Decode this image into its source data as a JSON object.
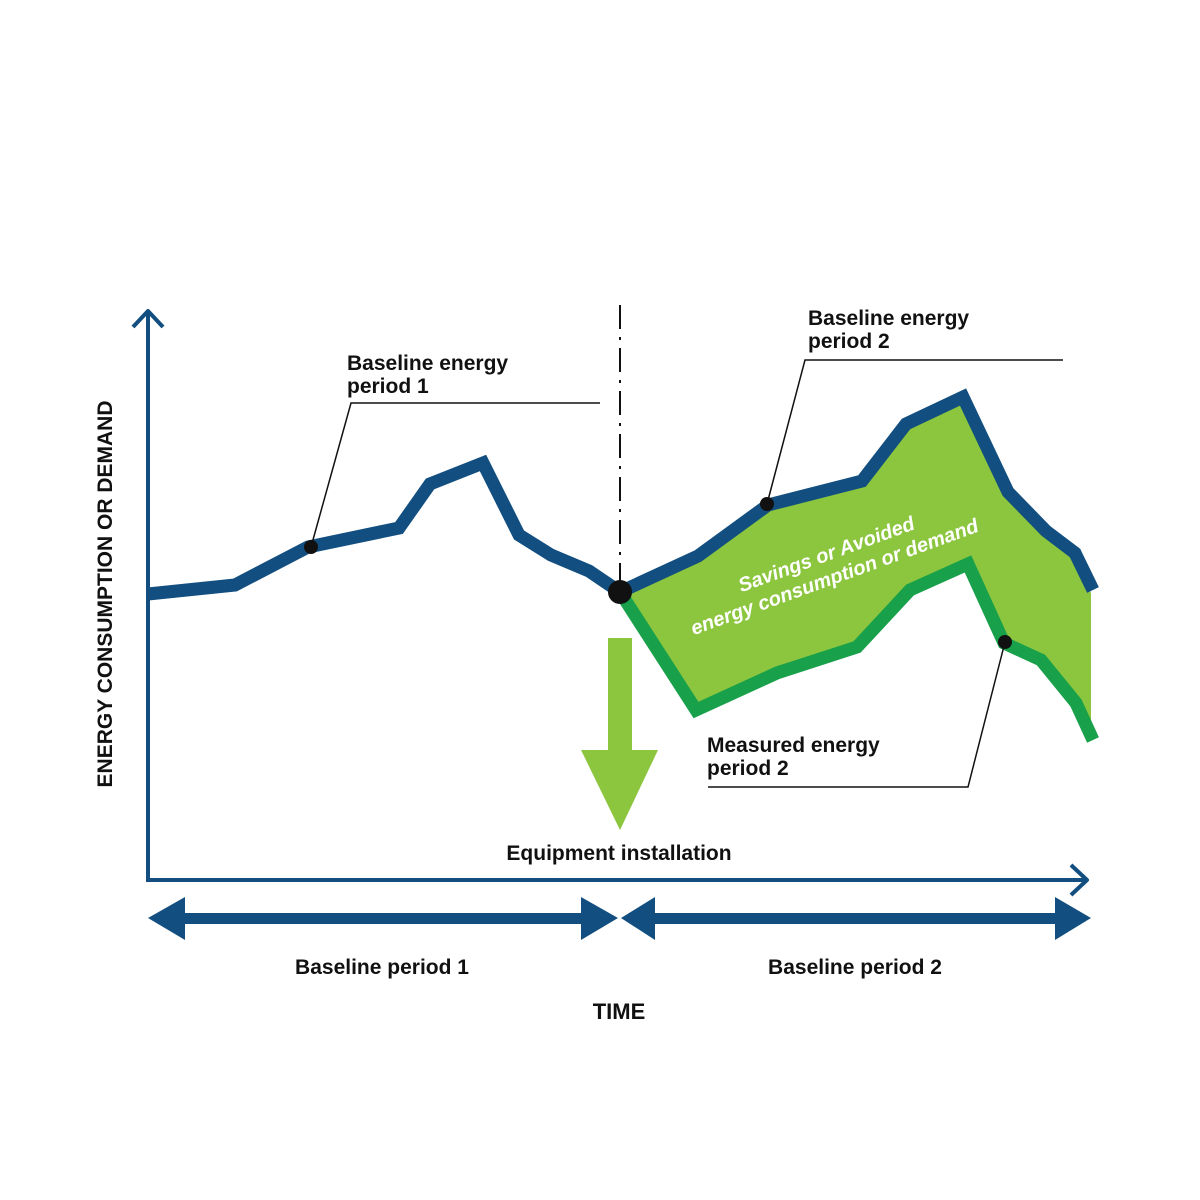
{
  "labels": {
    "y_axis": "ENERGY CONSUMPTION OR DEMAND",
    "x_axis": "TIME",
    "baseline_energy_1_line1": "Baseline energy",
    "baseline_energy_1_line2": "period 1",
    "baseline_energy_2_line1": "Baseline energy",
    "baseline_energy_2_line2": "period 2",
    "measured_energy_2_line1": "Measured energy",
    "measured_energy_2_line2": "period 2",
    "savings_line1": "Savings or Avoided",
    "savings_line2": "energy consumption or demand",
    "equipment_installation": "Equipment installation",
    "baseline_period_1": "Baseline period 1",
    "baseline_period_2": "Baseline period 2"
  },
  "colors": {
    "baseline_line": "#124f80",
    "measured_line": "#19a04a",
    "savings_fill": "#8cc63e",
    "arrow_fill": "#8cc63e",
    "text": "#111111"
  }
}
